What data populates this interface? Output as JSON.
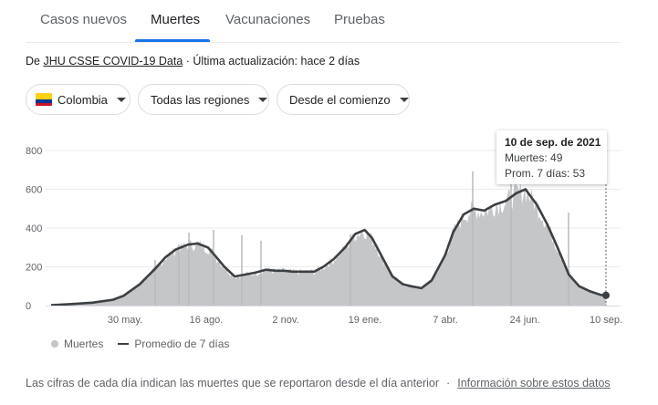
{
  "tabs": [
    "Casos nuevos",
    "Muertes",
    "Vacunaciones",
    "Pruebas"
  ],
  "source": {
    "prefix": "De ",
    "link": "JHU CSSE COVID-19 Data",
    "suffix": " · Última actualización: hace 2 días"
  },
  "filters": {
    "country": "Colombia",
    "region": "Todas las regiones",
    "period": "Desde el comienzo"
  },
  "tooltip": {
    "date": "10 de sep. de 2021",
    "deaths": "Muertes: 49",
    "avg": "Prom. 7 días: 53"
  },
  "legend": {
    "bars": "Muertes",
    "line": "Promedio de 7 días"
  },
  "footer": {
    "note": "Las cifras de cada día indican las muertes que se reportaron desde el día anterior",
    "sep": "·",
    "link": "Información sobre estos datos"
  },
  "colors": {
    "accent": "#1a73e8",
    "bars": "#c5c6c8",
    "line": "#3c4043"
  },
  "chart_data": {
    "type": "area",
    "title": "",
    "xlabel": "",
    "ylabel": "",
    "ylim": [
      0,
      800
    ],
    "yticks": [
      "0",
      "200",
      "400",
      "600",
      "800"
    ],
    "x_ticks": [
      "30 may.",
      "16 ago.",
      "2 nov.",
      "19 ene.",
      "7 abr.",
      "24 jun.",
      "10 sep."
    ],
    "series": [
      {
        "name": "Promedio de 7 días",
        "x": [
          "2020-03-21",
          "2020-04-10",
          "2020-04-30",
          "2020-05-20",
          "2020-05-30",
          "2020-06-15",
          "2020-06-30",
          "2020-07-10",
          "2020-07-20",
          "2020-08-01",
          "2020-08-10",
          "2020-08-20",
          "2020-08-25",
          "2020-09-05",
          "2020-09-15",
          "2020-09-25",
          "2020-10-05",
          "2020-10-15",
          "2020-10-25",
          "2020-11-02",
          "2020-11-10",
          "2020-11-20",
          "2020-12-01",
          "2020-12-10",
          "2020-12-20",
          "2020-12-31",
          "2021-01-10",
          "2021-01-19",
          "2021-01-26",
          "2021-02-05",
          "2021-02-15",
          "2021-02-25",
          "2021-03-05",
          "2021-03-15",
          "2021-03-25",
          "2021-04-07",
          "2021-04-15",
          "2021-04-25",
          "2021-05-05",
          "2021-05-15",
          "2021-05-25",
          "2021-06-05",
          "2021-06-15",
          "2021-06-24",
          "2021-06-28",
          "2021-07-05",
          "2021-07-15",
          "2021-07-25",
          "2021-08-05",
          "2021-08-15",
          "2021-08-25",
          "2021-09-05",
          "2021-09-10"
        ],
        "values": [
          2,
          8,
          15,
          30,
          50,
          110,
          190,
          250,
          290,
          315,
          320,
          300,
          270,
          200,
          150,
          160,
          170,
          185,
          180,
          180,
          175,
          175,
          175,
          200,
          240,
          300,
          370,
          390,
          350,
          250,
          150,
          110,
          100,
          90,
          130,
          260,
          380,
          470,
          500,
          490,
          520,
          540,
          580,
          600,
          570,
          520,
          420,
          300,
          160,
          100,
          75,
          55,
          53
        ]
      }
    ],
    "bars_note": "daily deaths approximately follow the 7-day average with spikes",
    "highlight": {
      "date": "2021-09-10",
      "deaths": 49,
      "avg": 53
    }
  }
}
